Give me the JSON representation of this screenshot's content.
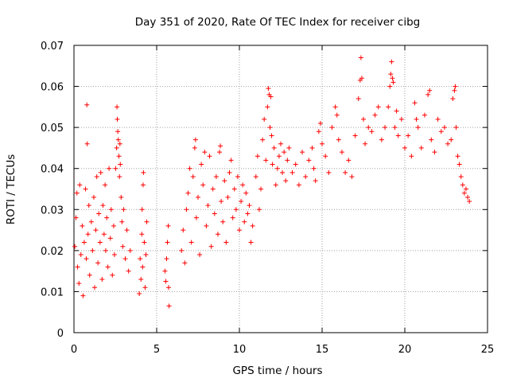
{
  "chart_data": {
    "type": "scatter",
    "title": "Day 351 of 2020, Rate Of TEC Index for receiver cibg",
    "xlabel": "GPS time / hours",
    "ylabel": "ROTI / TECUs",
    "xlim": [
      0,
      25
    ],
    "ylim": [
      0,
      0.07
    ],
    "xticks": [
      0,
      5,
      10,
      15,
      20,
      25
    ],
    "yticks": [
      0,
      0.01,
      0.02,
      0.03,
      0.04,
      0.05,
      0.06,
      0.07
    ],
    "xtick_labels": [
      "0",
      "5",
      "10",
      "15",
      "20",
      "25"
    ],
    "ytick_labels": [
      "0",
      "0.01",
      "0.02",
      "0.03",
      "0.04",
      "0.05",
      "0.06",
      "0.07"
    ],
    "grid": true,
    "marker": "+",
    "color": "#ff0000",
    "series": [
      {
        "name": "ROTI",
        "points": [
          [
            0.05,
            0.021
          ],
          [
            0.12,
            0.028
          ],
          [
            0.18,
            0.034
          ],
          [
            0.22,
            0.016
          ],
          [
            0.3,
            0.012
          ],
          [
            0.35,
            0.036
          ],
          [
            0.42,
            0.019
          ],
          [
            0.5,
            0.026
          ],
          [
            0.55,
            0.009
          ],
          [
            0.62,
            0.022
          ],
          [
            0.7,
            0.035
          ],
          [
            0.75,
            0.018
          ],
          [
            0.78,
            0.0555
          ],
          [
            0.8,
            0.046
          ],
          [
            0.85,
            0.024
          ],
          [
            0.9,
            0.031
          ],
          [
            0.95,
            0.014
          ],
          [
            1.05,
            0.027
          ],
          [
            1.12,
            0.02
          ],
          [
            1.2,
            0.033
          ],
          [
            1.25,
            0.011
          ],
          [
            1.32,
            0.025
          ],
          [
            1.38,
            0.038
          ],
          [
            1.45,
            0.017
          ],
          [
            1.5,
            0.029
          ],
          [
            1.58,
            0.022
          ],
          [
            1.62,
            0.039
          ],
          [
            1.7,
            0.013
          ],
          [
            1.75,
            0.031
          ],
          [
            1.82,
            0.024
          ],
          [
            1.88,
            0.036
          ],
          [
            1.92,
            0.02
          ],
          [
            1.98,
            0.028
          ],
          [
            2.05,
            0.016
          ],
          [
            2.12,
            0.04
          ],
          [
            2.2,
            0.023
          ],
          [
            2.25,
            0.03
          ],
          [
            2.32,
            0.014
          ],
          [
            2.4,
            0.026
          ],
          [
            2.45,
            0.019
          ],
          [
            2.52,
            0.04
          ],
          [
            2.58,
            0.045
          ],
          [
            2.6,
            0.055
          ],
          [
            2.62,
            0.052
          ],
          [
            2.65,
            0.049
          ],
          [
            2.68,
            0.047
          ],
          [
            2.72,
            0.043
          ],
          [
            2.75,
            0.038
          ],
          [
            2.78,
            0.046
          ],
          [
            2.8,
            0.041
          ],
          [
            2.85,
            0.033
          ],
          [
            2.9,
            0.027
          ],
          [
            2.95,
            0.021
          ],
          [
            3.0,
            0.03
          ],
          [
            3.1,
            0.018
          ],
          [
            3.2,
            0.025
          ],
          [
            3.3,
            0.015
          ],
          [
            3.4,
            0.02
          ],
          [
            3.95,
            0.0095
          ],
          [
            4.0,
            0.018
          ],
          [
            4.05,
            0.013
          ],
          [
            4.1,
            0.024
          ],
          [
            4.12,
            0.03
          ],
          [
            4.15,
            0.016
          ],
          [
            4.18,
            0.036
          ],
          [
            4.2,
            0.039
          ],
          [
            4.25,
            0.022
          ],
          [
            4.3,
            0.011
          ],
          [
            4.35,
            0.019
          ],
          [
            4.4,
            0.027
          ],
          [
            5.5,
            0.015
          ],
          [
            5.55,
            0.0125
          ],
          [
            5.6,
            0.018
          ],
          [
            5.65,
            0.022
          ],
          [
            5.7,
            0.026
          ],
          [
            5.72,
            0.011
          ],
          [
            5.75,
            0.0065
          ],
          [
            6.5,
            0.02
          ],
          [
            6.6,
            0.025
          ],
          [
            6.7,
            0.017
          ],
          [
            6.8,
            0.03
          ],
          [
            6.9,
            0.034
          ],
          [
            7.0,
            0.04
          ],
          [
            7.1,
            0.022
          ],
          [
            7.2,
            0.038
          ],
          [
            7.3,
            0.045
          ],
          [
            7.35,
            0.047
          ],
          [
            7.4,
            0.028
          ],
          [
            7.5,
            0.033
          ],
          [
            7.6,
            0.019
          ],
          [
            7.7,
            0.041
          ],
          [
            7.8,
            0.036
          ],
          [
            7.9,
            0.044
          ],
          [
            8.0,
            0.026
          ],
          [
            8.1,
            0.031
          ],
          [
            8.2,
            0.043
          ],
          [
            8.3,
            0.021
          ],
          [
            8.4,
            0.035
          ],
          [
            8.5,
            0.029
          ],
          [
            8.6,
            0.038
          ],
          [
            8.7,
            0.024
          ],
          [
            8.8,
            0.044
          ],
          [
            8.85,
            0.0455
          ],
          [
            8.9,
            0.032
          ],
          [
            9.0,
            0.027
          ],
          [
            9.1,
            0.037
          ],
          [
            9.2,
            0.022
          ],
          [
            9.3,
            0.033
          ],
          [
            9.4,
            0.039
          ],
          [
            9.5,
            0.042
          ],
          [
            9.6,
            0.028
          ],
          [
            9.7,
            0.035
          ],
          [
            9.8,
            0.03
          ],
          [
            9.9,
            0.038
          ],
          [
            10.0,
            0.025
          ],
          [
            10.1,
            0.032
          ],
          [
            10.2,
            0.036
          ],
          [
            10.3,
            0.027
          ],
          [
            10.4,
            0.034
          ],
          [
            10.5,
            0.029
          ],
          [
            10.6,
            0.031
          ],
          [
            10.7,
            0.022
          ],
          [
            10.8,
            0.026
          ],
          [
            11.0,
            0.038
          ],
          [
            11.1,
            0.043
          ],
          [
            11.2,
            0.03
          ],
          [
            11.3,
            0.035
          ],
          [
            11.4,
            0.047
          ],
          [
            11.5,
            0.052
          ],
          [
            11.6,
            0.042
          ],
          [
            11.7,
            0.055
          ],
          [
            11.75,
            0.0595
          ],
          [
            11.8,
            0.058
          ],
          [
            11.85,
            0.05
          ],
          [
            11.9,
            0.0575
          ],
          [
            11.95,
            0.048
          ],
          [
            12.0,
            0.041
          ],
          [
            12.1,
            0.045
          ],
          [
            12.2,
            0.036
          ],
          [
            12.3,
            0.04
          ],
          [
            12.4,
            0.043
          ],
          [
            12.5,
            0.046
          ],
          [
            12.6,
            0.039
          ],
          [
            12.7,
            0.044
          ],
          [
            12.8,
            0.037
          ],
          [
            12.9,
            0.042
          ],
          [
            13.0,
            0.045
          ],
          [
            13.2,
            0.039
          ],
          [
            13.4,
            0.041
          ],
          [
            13.6,
            0.036
          ],
          [
            13.8,
            0.044
          ],
          [
            14.0,
            0.038
          ],
          [
            14.2,
            0.042
          ],
          [
            14.4,
            0.045
          ],
          [
            14.5,
            0.04
          ],
          [
            14.6,
            0.037
          ],
          [
            14.8,
            0.049
          ],
          [
            14.9,
            0.051
          ],
          [
            15.0,
            0.046
          ],
          [
            15.2,
            0.043
          ],
          [
            15.4,
            0.039
          ],
          [
            15.6,
            0.05
          ],
          [
            15.8,
            0.055
          ],
          [
            15.9,
            0.053
          ],
          [
            16.0,
            0.047
          ],
          [
            16.2,
            0.044
          ],
          [
            16.4,
            0.039
          ],
          [
            16.6,
            0.042
          ],
          [
            16.8,
            0.038
          ],
          [
            17.0,
            0.048
          ],
          [
            17.2,
            0.057
          ],
          [
            17.3,
            0.0615
          ],
          [
            17.35,
            0.067
          ],
          [
            17.4,
            0.062
          ],
          [
            17.5,
            0.052
          ],
          [
            17.6,
            0.046
          ],
          [
            17.8,
            0.05
          ],
          [
            18.0,
            0.049
          ],
          [
            18.2,
            0.053
          ],
          [
            18.4,
            0.055
          ],
          [
            18.6,
            0.047
          ],
          [
            18.8,
            0.05
          ],
          [
            19.0,
            0.055
          ],
          [
            19.1,
            0.06
          ],
          [
            19.15,
            0.063
          ],
          [
            19.2,
            0.066
          ],
          [
            19.25,
            0.062
          ],
          [
            19.3,
            0.061
          ],
          [
            19.4,
            0.05
          ],
          [
            19.5,
            0.054
          ],
          [
            19.6,
            0.048
          ],
          [
            19.8,
            0.052
          ],
          [
            20.0,
            0.045
          ],
          [
            20.2,
            0.048
          ],
          [
            20.4,
            0.043
          ],
          [
            20.6,
            0.056
          ],
          [
            20.7,
            0.052
          ],
          [
            20.8,
            0.05
          ],
          [
            21.0,
            0.045
          ],
          [
            21.2,
            0.053
          ],
          [
            21.4,
            0.058
          ],
          [
            21.5,
            0.059
          ],
          [
            21.6,
            0.047
          ],
          [
            21.8,
            0.044
          ],
          [
            22.0,
            0.052
          ],
          [
            22.2,
            0.049
          ],
          [
            22.4,
            0.05
          ],
          [
            22.6,
            0.046
          ],
          [
            22.8,
            0.047
          ],
          [
            22.9,
            0.057
          ],
          [
            23.0,
            0.059
          ],
          [
            23.05,
            0.06
          ],
          [
            23.1,
            0.05
          ],
          [
            23.2,
            0.043
          ],
          [
            23.3,
            0.041
          ],
          [
            23.4,
            0.038
          ],
          [
            23.5,
            0.036
          ],
          [
            23.6,
            0.034
          ],
          [
            23.7,
            0.035
          ],
          [
            23.8,
            0.033
          ],
          [
            23.9,
            0.032
          ]
        ]
      }
    ]
  }
}
